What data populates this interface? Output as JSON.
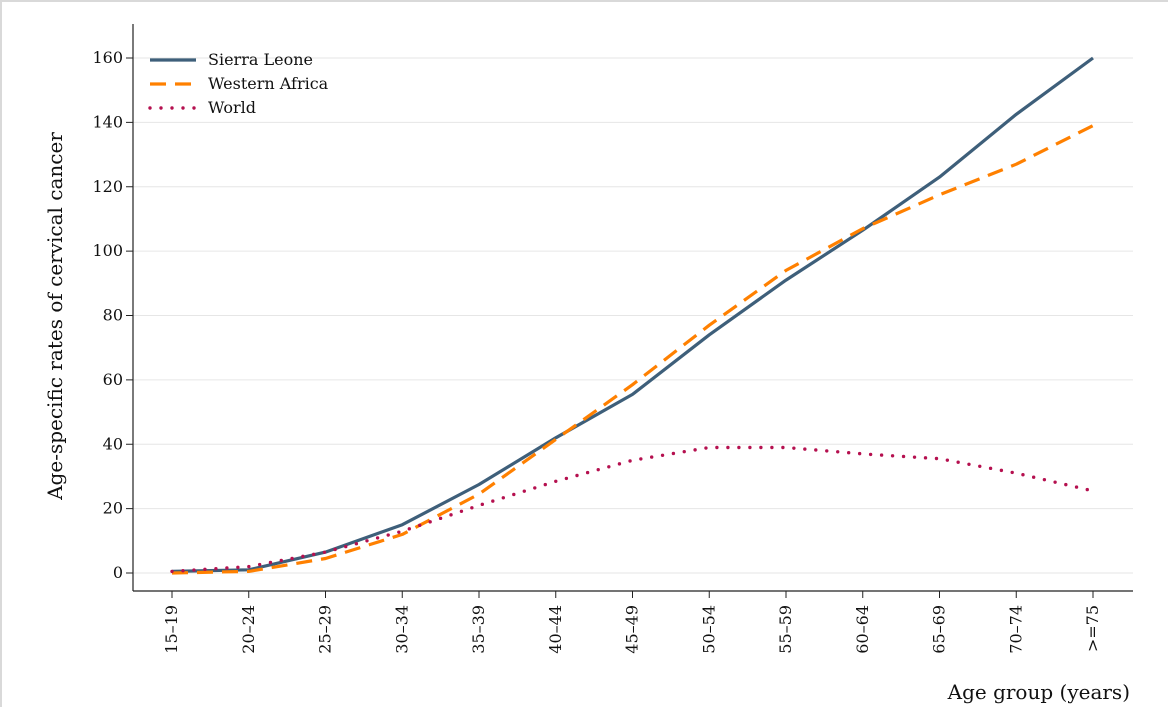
{
  "chart_data": {
    "type": "line",
    "title": "",
    "xlabel": "Age group (years)",
    "ylabel": "Age-specific rates of cervical cancer",
    "categories": [
      "15–19",
      "20–24",
      "25–29",
      "30–34",
      "35–39",
      "40–44",
      "45–49",
      "50–54",
      "55–59",
      "60–64",
      "65–69",
      "70–74",
      ">=75"
    ],
    "ylim": [
      0,
      160
    ],
    "yticks": [
      0,
      20,
      40,
      60,
      80,
      100,
      120,
      140,
      160
    ],
    "grid": true,
    "legend_position": "top-left",
    "series": [
      {
        "name": "Sierra Leone",
        "style": "solid",
        "color": "#3e5f7a",
        "values": [
          0.5,
          1,
          6.5,
          15,
          27.5,
          42,
          55.5,
          74,
          91,
          106.5,
          123,
          142.5,
          160
        ]
      },
      {
        "name": "Western Africa",
        "style": "dashed",
        "color": "#ff8000",
        "values": [
          0,
          0.5,
          4.5,
          12,
          24.5,
          41.5,
          58.5,
          77,
          94,
          107,
          117.5,
          127,
          139
        ]
      },
      {
        "name": "World",
        "style": "dotted",
        "color": "#b5104f",
        "values": [
          0.5,
          2,
          6.5,
          13,
          21,
          28.5,
          35,
          39,
          39,
          37,
          35.5,
          31,
          25.5
        ]
      }
    ]
  }
}
